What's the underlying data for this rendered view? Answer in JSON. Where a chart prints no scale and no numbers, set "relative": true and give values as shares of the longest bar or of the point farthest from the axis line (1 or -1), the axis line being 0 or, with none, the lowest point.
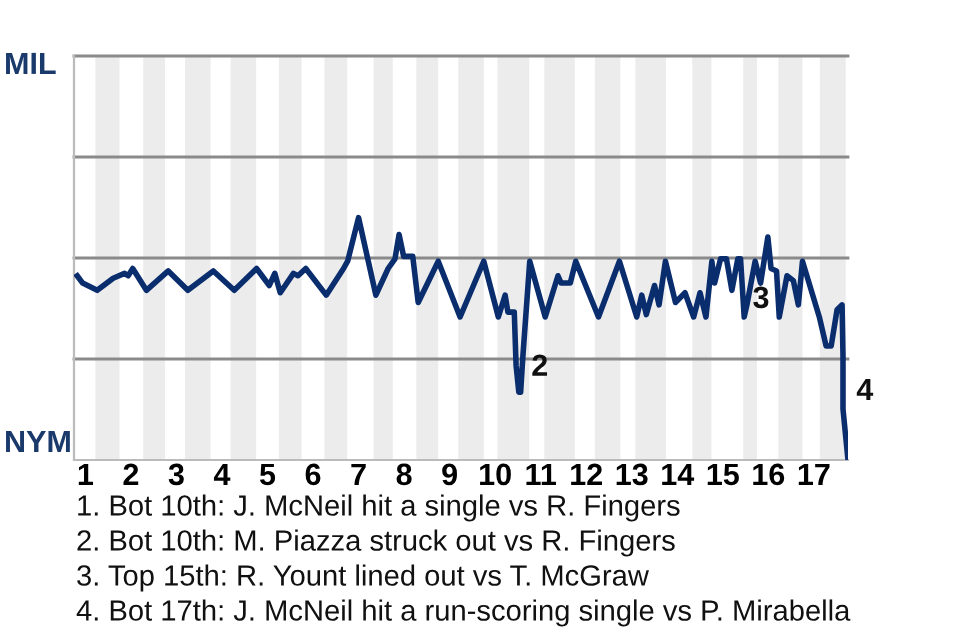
{
  "chart_data": {
    "type": "line",
    "relative": true,
    "x": [
      0.82,
      0.94,
      1.26,
      1.61,
      1.86,
      1.94,
      2.04,
      2.34,
      2.82,
      3.25,
      3.81,
      4.27,
      4.76,
      5.04,
      5.16,
      5.28,
      5.57,
      5.67,
      5.84,
      6.29,
      6.67,
      6.76,
      7.0,
      7.38,
      7.65,
      7.8,
      7.89,
      7.99,
      8.19,
      8.31,
      8.75,
      9.23,
      9.75,
      10.07,
      10.22,
      10.28,
      10.42,
      10.46,
      10.52,
      10.56,
      10.61,
      10.76,
      11.1,
      11.38,
      11.45,
      11.65,
      11.77,
      12.27,
      12.73,
      13.11,
      13.22,
      13.32,
      13.5,
      13.6,
      13.74,
      13.96,
      14.17,
      14.36,
      14.5,
      14.63,
      14.76,
      14.82,
      14.95,
      15.08,
      15.2,
      15.33,
      15.39,
      15.47,
      15.53,
      15.71,
      15.83,
      15.99,
      16.06,
      16.18,
      16.24,
      16.41,
      16.55,
      16.66,
      16.75,
      17.12,
      17.27,
      17.38,
      17.51,
      17.62,
      17.64,
      17.64,
      17.75
    ],
    "series": [
      {
        "color": "#0a2d6e",
        "values": [
          0.76,
          0.73,
          0.7,
          0.75,
          0.77,
          0.76,
          0.79,
          0.7,
          0.78,
          0.7,
          0.78,
          0.7,
          0.79,
          0.72,
          0.77,
          0.69,
          0.77,
          0.76,
          0.79,
          0.68,
          0.79,
          0.82,
          1.0,
          0.68,
          0.79,
          0.83,
          0.93,
          0.84,
          0.84,
          0.65,
          0.82,
          0.59,
          0.82,
          0.59,
          0.68,
          0.61,
          0.61,
          0.39,
          0.28,
          0.28,
          0.43,
          0.82,
          0.59,
          0.76,
          0.73,
          0.73,
          0.82,
          0.59,
          0.82,
          0.59,
          0.68,
          0.6,
          0.72,
          0.64,
          0.82,
          0.65,
          0.69,
          0.59,
          0.69,
          0.59,
          0.82,
          0.73,
          0.83,
          0.83,
          0.7,
          0.83,
          0.83,
          0.59,
          0.64,
          0.82,
          0.73,
          0.92,
          0.79,
          0.78,
          0.59,
          0.76,
          0.74,
          0.64,
          0.82,
          0.59,
          0.47,
          0.47,
          0.62,
          0.64,
          0.43,
          0.21,
          0
        ]
      }
    ],
    "xlim": [
      0.75,
      17.75
    ],
    "xticks": [
      1,
      2,
      3,
      4,
      5,
      6,
      7,
      8,
      9,
      10,
      11,
      12,
      13,
      14,
      15,
      16,
      17
    ],
    "tick_labels": "x",
    "grid": false,
    "ref_lines": [
      {
        "axis": "y",
        "value": 0.4167,
        "color": "#8a8a8a"
      },
      {
        "axis": "y",
        "value": 0.8333,
        "color": "#8a8a8a"
      },
      {
        "axis": "y",
        "value": 1.25,
        "color": "#8a8a8a"
      },
      {
        "axis": "y",
        "value": 1.6667,
        "color": "#8a8a8a"
      }
    ],
    "marker": "none",
    "line_style": "solid",
    "legend": false,
    "bands": [
      {
        "axis": "x",
        "from": 1.22,
        "to": 1.75,
        "color": "#ececec"
      },
      {
        "axis": "x",
        "from": 2.27,
        "to": 2.75,
        "color": "#ececec"
      },
      {
        "axis": "x",
        "from": 3.19,
        "to": 3.75,
        "color": "#ececec"
      },
      {
        "axis": "x",
        "from": 4.19,
        "to": 4.75,
        "color": "#ececec"
      },
      {
        "axis": "x",
        "from": 5.25,
        "to": 5.75,
        "color": "#ececec"
      },
      {
        "axis": "x",
        "from": 6.25,
        "to": 6.75,
        "color": "#ececec"
      },
      {
        "axis": "x",
        "from": 7.33,
        "to": 7.75,
        "color": "#ececec"
      },
      {
        "axis": "x",
        "from": 8.27,
        "to": 8.75,
        "color": "#ececec"
      },
      {
        "axis": "x",
        "from": 9.19,
        "to": 9.75,
        "color": "#ececec"
      },
      {
        "axis": "x",
        "from": 10.05,
        "to": 10.75,
        "color": "#ececec"
      },
      {
        "axis": "x",
        "from": 11.08,
        "to": 11.75,
        "color": "#ececec"
      },
      {
        "axis": "x",
        "from": 12.19,
        "to": 12.75,
        "color": "#ececec"
      },
      {
        "axis": "x",
        "from": 13.08,
        "to": 13.75,
        "color": "#ececec"
      },
      {
        "axis": "x",
        "from": 14.33,
        "to": 14.75,
        "color": "#ececec"
      },
      {
        "axis": "x",
        "from": 15.45,
        "to": 15.75,
        "color": "#ececec"
      },
      {
        "axis": "x",
        "from": 16.22,
        "to": 16.75,
        "color": "#ececec"
      },
      {
        "axis": "x",
        "from": 17.13,
        "to": 17.7,
        "color": "#ececec"
      }
    ],
    "annotations": [
      "MIL",
      "NYM",
      {
        "text": "2",
        "x": 10.61,
        "y": 0.38
      },
      {
        "text": "3",
        "x": 15.47,
        "y": 0.66
      },
      {
        "text": "4",
        "x": 17.75,
        "y": 0.28
      },
      "1. Bot 10th: J. McNeil hit a single vs R. Fingers",
      "2. Bot 10th: M. Piazza struck out vs R. Fingers",
      "3. Top 15th: R. Yount lined out vs T. McGraw",
      "4. Bot 17th: J. McNeil hit a run-scoring single vs P. Mirabella"
    ]
  }
}
